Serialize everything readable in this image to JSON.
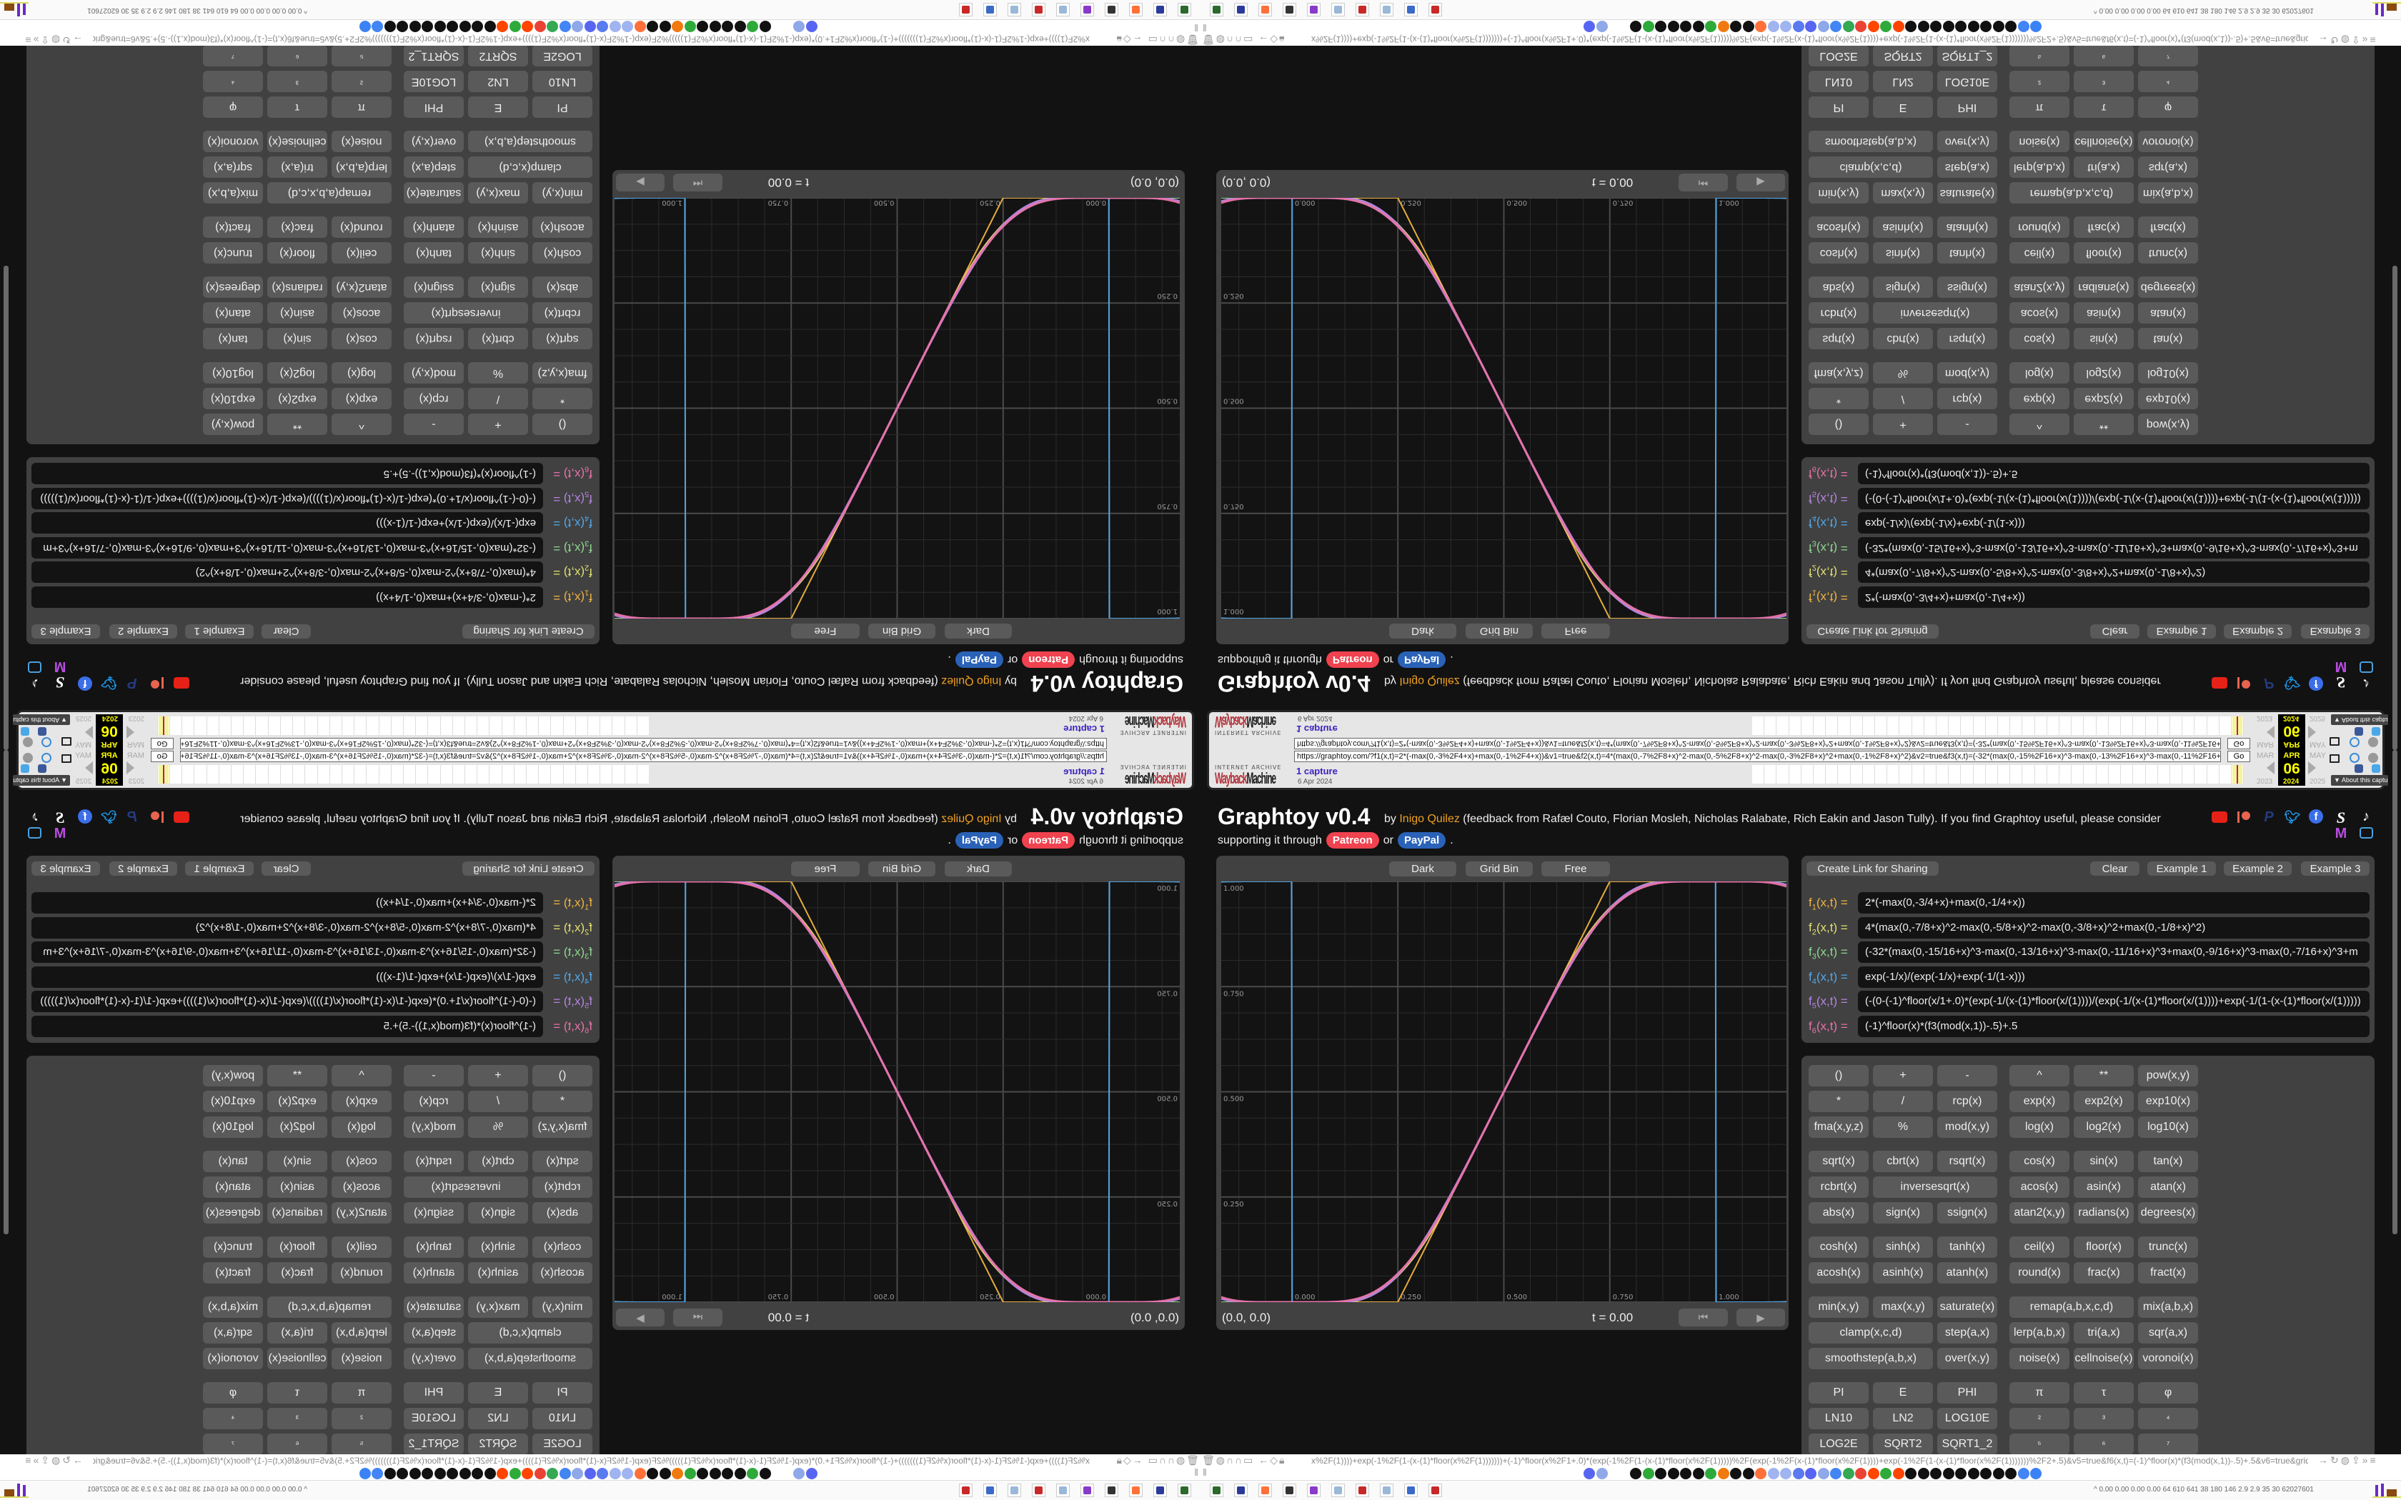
{
  "wayback": {
    "logo_top": "INTERNET ARCHIVE",
    "logo_red": "Wayback",
    "logo_black": "Machine",
    "url": "https://graphtoy.com/?f1(x,t)=2*(-max(0,-3%2F4+x)+max(0,-1%2F4+x))&v1=true&f2(x,t)=4*(max(0,-7%2F8+x)^2-max(0,-5%2F8+x)^2-max(0,-3%2F8+x)^2+max(0,-1%2F8+x)^2)&v2=true&f3(x,t)=(-32*(max(0,-15%2F16+x)^3-max(0,-13%2F16+x)^3-max(0,-11%2F16+x)",
    "go": "Go",
    "captures": "1 capture",
    "date": "6 Apr 2024",
    "months": [
      "MAR",
      "APR",
      "MAY"
    ],
    "day": "06",
    "years": [
      "2023",
      "2024",
      "2025"
    ],
    "about": "▼ About this capture"
  },
  "header": {
    "title": "Graphtoy v0.4",
    "by": "by ",
    "author": "Inigo Quilez",
    "credits": " (feedback from Rafæl Couto, Florian Mosleh, Nicholas Ralabate, Rich Eakin and Jason Tully). If you find Graphtoy useful, please consider",
    "support_prefix": "supporting it through",
    "patreon": "Patreon",
    "or": "or",
    "paypal": "PayPal",
    "period": ".",
    "social_icons": [
      "youtube",
      "patreon",
      "paypal",
      "twitter",
      "facebook",
      "substack",
      "tiktok",
      "mastodon",
      "bilibili"
    ]
  },
  "graph": {
    "modes": [
      "Dark",
      "Grid Bin",
      "Free"
    ],
    "coords": "(0.0, 0.0)",
    "time": "t = 0.00",
    "x_range": [
      -0.1667,
      1.1667
    ],
    "y_range": [
      0,
      1
    ],
    "x_tick_labels": [
      "0.000",
      "0.250",
      "0.500",
      "0.750",
      "1.000"
    ],
    "y_tick_labels": [
      "1.000",
      "0.750",
      "0.500",
      "0.250"
    ],
    "grid": "on"
  },
  "functions_toolbar": {
    "share": "Create Link for Sharing",
    "clear": "Clear",
    "examples": [
      "Example 1",
      "Example 2",
      "Example 3"
    ]
  },
  "func_label": {
    "f": "f",
    "args": "(x,t) ="
  },
  "functions": [
    {
      "index": "1",
      "color": "#f0b440",
      "formula": "2*(-max(0,-3/4+x)+max(0,-1/4+x))"
    },
    {
      "index": "2",
      "color": "#e2e070",
      "formula": "4*(max(0,-7/8+x)^2-max(0,-5/8+x)^2-max(0,-3/8+x)^2+max(0,-1/8+x)^2)"
    },
    {
      "index": "3",
      "color": "#8fd890",
      "formula": "(-32*(max(0,-15/16+x)^3-max(0,-13/16+x)^3-max(0,-11/16+x)^3+max(0,-9/16+x)^3-max(0,-7/16+x)^3+m"
    },
    {
      "index": "4",
      "color": "#52a8e8",
      "formula": "exp(-1/x)/(exp(-1/x)+exp(-1/(1-x)))"
    },
    {
      "index": "5",
      "color": "#b684e0",
      "formula": "(-(0-(-1)^floor(x/1+.0)*(exp(-1/(x-(1)*floor(x/(1))))/(exp(-1/(x-(1)*floor(x/(1))))+exp(-1/(1-(x-(1)*floor(x/(1)))))"
    },
    {
      "index": "6",
      "color": "#e872a8",
      "formula": "(-1)^floor(x)*(f3(mod(x,1))-.5)+.5"
    }
  ],
  "keypad": [
    [
      [
        "()",
        "+",
        "-",
        "^",
        "**",
        "pow(x,y)"
      ],
      [
        "*",
        "/",
        "rcp(x)",
        "exp(x)",
        "exp2(x)",
        "exp10(x)"
      ],
      [
        "fma(x,y,z)",
        "%",
        "mod(x,y)",
        "log(x)",
        "log2(x)",
        "log10(x)"
      ]
    ],
    [
      [
        "sqrt(x)",
        "cbrt(x)",
        "rsqrt(x)",
        "cos(x)",
        "sin(x)",
        "tan(x)"
      ],
      [
        "rcbrt(x)",
        "inversesqrt(x)",
        "acos(x)",
        "asin(x)",
        "atan(x)"
      ],
      [
        "abs(x)",
        "sign(x)",
        "ssign(x)",
        "atan2(x,y)",
        "radians(x)",
        "degrees(x)"
      ]
    ],
    [
      [
        "cosh(x)",
        "sinh(x)",
        "tanh(x)",
        "ceil(x)",
        "floor(x)",
        "trunc(x)"
      ],
      [
        "acosh(x)",
        "asinh(x)",
        "atanh(x)",
        "round(x)",
        "frac(x)",
        "fract(x)"
      ]
    ],
    [
      [
        "min(x,y)",
        "max(x,y)",
        "saturate(x)",
        "remap(a,b,x,c,d)",
        "mix(a,b,x)"
      ],
      [
        "clamp(x,c,d)",
        "step(a,x)",
        "lerp(a,b,x)",
        "tri(a,x)",
        "sqr(a,x)"
      ],
      [
        "smoothstep(a,b,x)",
        "over(x,y)",
        "noise(x)",
        "cellnoise(x)",
        "voronoi(x)"
      ]
    ],
    [
      [
        "PI",
        "E",
        "PHI",
        "π",
        "τ",
        "φ"
      ],
      [
        "LN10",
        "LN2",
        "LOG10E",
        "²",
        "³",
        "⁴"
      ],
      [
        "LOG2E",
        "SQRT2",
        "SQRT1_2",
        "⁵",
        "⁶",
        "⁷"
      ]
    ]
  ],
  "browser": {
    "url": "x%2F(1))))+exp(-1%2F(1-(x-(1)*floor(x%2F(1)))))))+(-1)^floor(x%2F1+.0)*(exp(-1%2F(1-(x-(1)*floor(x%2F(1)))))%2F(exp(-1%2F(x-(1)*floor(x%2F(1))))+exp(-1%2F(1-(x-(1)*floor(x%2F(1)))))))%2F2+.5)&v5=true&f6(x,t)=(-1)^floor(x)*(f3(mod(x,1))-.5)+.5&v6=true&grid=2&coords=0.5,0.5,0.6669354838709677",
    "tray_text": "0.00 0.00 0.00 0.00  64  610  641  38  180  146  2.9  2.9  35  30  62027601",
    "bookmark_colors": [
      "#5865f2",
      "#8fa8e8",
      "#111111",
      "#2eaa3a",
      "#111111",
      "#111111",
      "#111111",
      "#111111",
      "#2eaa3a",
      "#f07a10",
      "#111111",
      "#111111",
      "#ff7139",
      "#a0b4f0",
      "#a0b4f0",
      "#5a7af0",
      "#5865f2",
      "#8fa8e8",
      "#4285f4",
      "#34a853",
      "#ea4335",
      "#ff4500",
      "#2eaa3a",
      "#ff4500",
      "#111111",
      "#111111",
      "#111111",
      "#111111",
      "#111111",
      "#111111",
      "#111111",
      "#111111",
      "#111111",
      "#4285f4",
      "#3b82f6"
    ],
    "taskbar_colors": [
      "#2a6a2a",
      "#2a3a9a",
      "#ff7139",
      "#333333",
      "#8a3ac8",
      "#9ab8d8",
      "#c82828",
      "#9ab8d8",
      "#3a6ac8",
      "#c82828"
    ]
  }
}
